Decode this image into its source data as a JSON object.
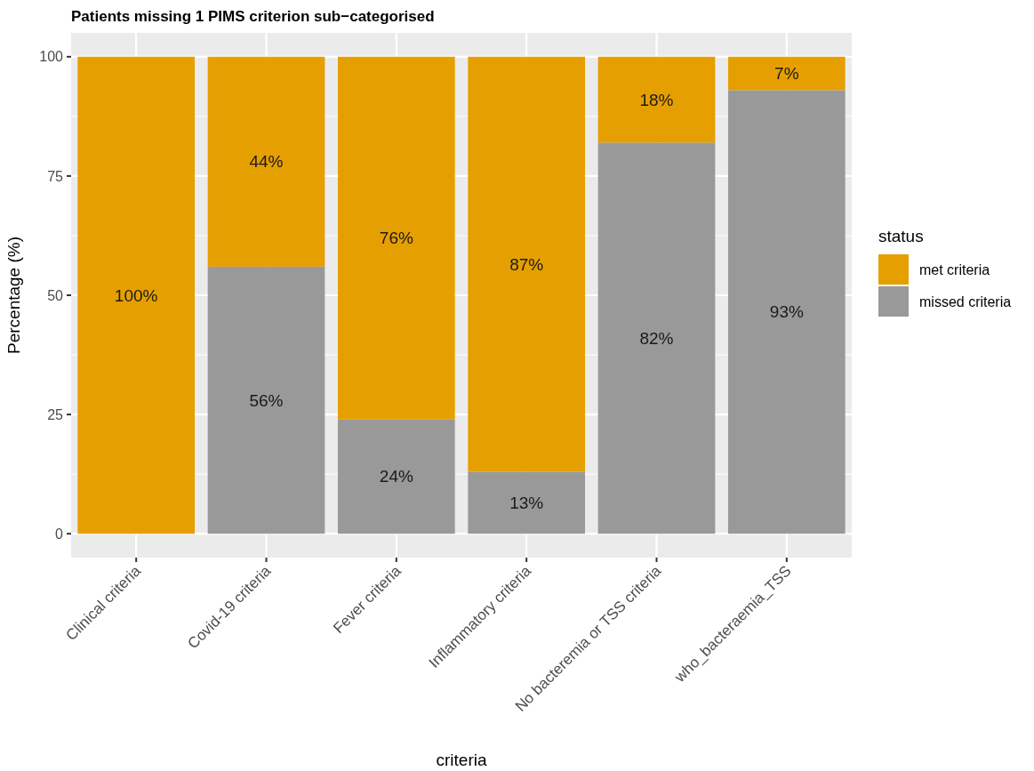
{
  "chart_data": {
    "type": "bar",
    "title": "Patients missing 1 PIMS criterion sub−categorised",
    "xlabel": "criteria",
    "ylabel": "Percentage (%)",
    "legend_title": "status",
    "categories": [
      "Clinical criteria",
      "Covid-19 criteria",
      "Fever criteria",
      "Inflammatory criteria",
      "No bacteremia or TSS criteria",
      "who_bacteraemia_TSS"
    ],
    "stacked": true,
    "series": [
      {
        "name": "missed criteria",
        "color": "#999999",
        "values": [
          0,
          56,
          24,
          13,
          82,
          93
        ],
        "value_labels": [
          null,
          "56%",
          "24%",
          "13%",
          "82%",
          "93%"
        ]
      },
      {
        "name": "met criteria",
        "color": "#e69f00",
        "values": [
          100,
          44,
          76,
          87,
          18,
          7
        ],
        "value_labels": [
          "100%",
          "44%",
          "76%",
          "87%",
          "18%",
          "7%"
        ]
      }
    ],
    "ylim": [
      -5,
      105
    ],
    "yticks": [
      0,
      25,
      50,
      75,
      100
    ],
    "grid": true,
    "legend": "right"
  }
}
